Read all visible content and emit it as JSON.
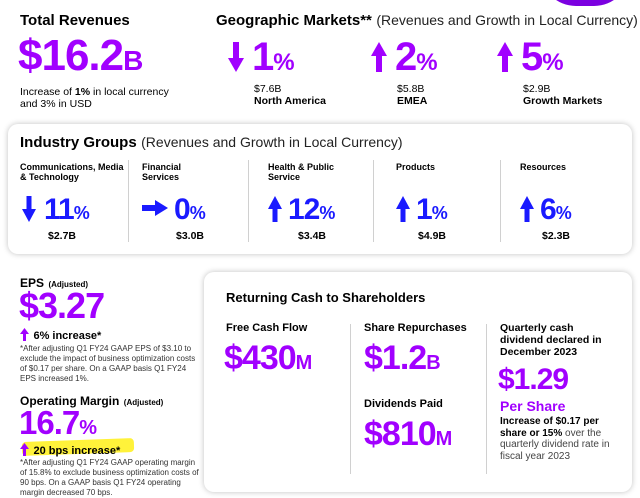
{
  "total_revenues": {
    "title": "Total Revenues",
    "value": "$16.2",
    "unit": "B",
    "note_pre": "Increase of ",
    "note_bold": "1%",
    "note_post": " in local currency and 3% in USD"
  },
  "geographic_markets": {
    "title": "Geographic Markets**",
    "subtitle": "(Revenues and Growth in Local Currency)",
    "items": [
      {
        "direction": "down",
        "value": "1",
        "unit": "%",
        "amount": "$7.6B",
        "name": "North America"
      },
      {
        "direction": "up",
        "value": "2",
        "unit": "%",
        "amount": "$5.8B",
        "name": "EMEA"
      },
      {
        "direction": "up",
        "value": "5",
        "unit": "%",
        "amount": "$2.9B",
        "name": "Growth Markets"
      }
    ]
  },
  "industry_groups": {
    "title": "Industry Groups",
    "subtitle": "(Revenues and Growth in Local Currency)",
    "items": [
      {
        "label": "Communications, Media & Technology",
        "direction": "down",
        "value": "11",
        "unit": "%",
        "amount": "$2.7B"
      },
      {
        "label": "Financial Services",
        "direction": "right",
        "value": "0",
        "unit": "%",
        "amount": "$3.0B"
      },
      {
        "label": "Health & Public Service",
        "direction": "up",
        "value": "12",
        "unit": "%",
        "amount": "$3.4B"
      },
      {
        "label": "Products",
        "direction": "up",
        "value": "1",
        "unit": "%",
        "amount": "$4.9B"
      },
      {
        "label": "Resources",
        "direction": "up",
        "value": "6",
        "unit": "%",
        "amount": "$2.3B"
      }
    ]
  },
  "eps": {
    "title": "EPS",
    "qualifier": "(Adjusted)",
    "value": "$3.27",
    "change": "6% increase*",
    "footnote": "*After adjusting Q1 FY24 GAAP EPS of $3.10 to exclude the impact of business optimization costs of $0.17 per share. On a GAAP basis Q1 FY24 EPS increased 1%."
  },
  "operating_margin": {
    "title": "Operating Margin",
    "qualifier": "(Adjusted)",
    "value": "16.7",
    "unit": "%",
    "change": "20 bps increase*",
    "footnote": "*After adjusting Q1 FY24 GAAP operating margin of 15.8% to exclude business optimization costs of 90 bps. On a GAAP basis Q1 FY24 operating margin decreased 70 bps."
  },
  "returning_cash": {
    "title": "Returning Cash to Shareholders",
    "free_cash_flow": {
      "label": "Free Cash Flow",
      "value": "$430",
      "unit": "M"
    },
    "share_repurchases": {
      "label": "Share Repurchases",
      "value": "$1.2",
      "unit": "B"
    },
    "dividends_paid": {
      "label": "Dividends Paid",
      "value": "$810",
      "unit": "M"
    },
    "dividend": {
      "label": "Quarterly cash dividend declared in December 2023",
      "value": "$1.29",
      "per": "Per Share",
      "note_bold": "Increase of $0.17 per share or 15%",
      "note_post": " over the quarterly dividend rate in fiscal year 2023"
    }
  },
  "colors": {
    "purple": "#a100ff",
    "blue": "#1a1aff",
    "highlight": "#fff23a"
  }
}
